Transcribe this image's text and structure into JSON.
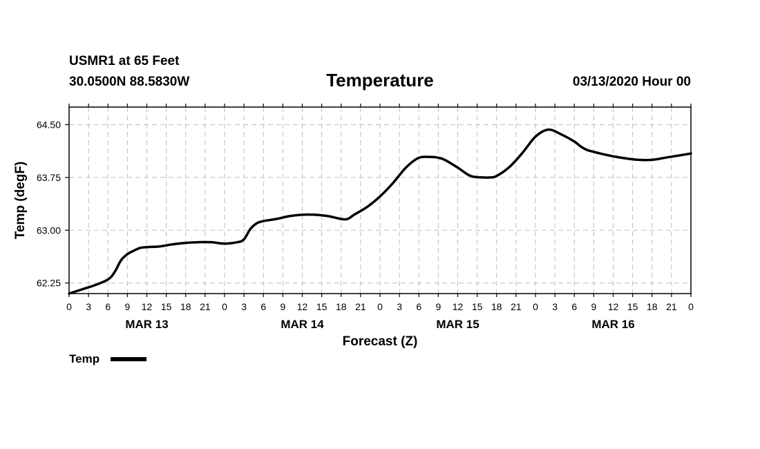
{
  "header": {
    "station": "USMR1 at 65 Feet",
    "coords": "30.0500N 88.5830W",
    "title": "Temperature",
    "run": "03/13/2020 Hour 00"
  },
  "legend": {
    "label": "Temp"
  },
  "chart_data": {
    "type": "line",
    "title": "Temperature",
    "xlabel": "Forecast (Z)",
    "ylabel": "Temp (degF)",
    "xlim": [
      0,
      96
    ],
    "ylim": [
      62.1,
      64.75
    ],
    "grid": true,
    "legend_position": "bottom-left",
    "y_ticks": [
      62.25,
      63.0,
      63.75,
      64.5
    ],
    "y_tick_labels": [
      "62.25",
      "63.00",
      "63.75",
      "64.50"
    ],
    "x_tick_labels": [
      "0",
      "3",
      "6",
      "9",
      "12",
      "15",
      "18",
      "21",
      "0",
      "3",
      "6",
      "9",
      "12",
      "15",
      "18",
      "21",
      "0",
      "3",
      "6",
      "9",
      "12",
      "15",
      "18",
      "21",
      "0",
      "3",
      "6",
      "9",
      "12",
      "15",
      "18",
      "21",
      "0"
    ],
    "day_labels": [
      "MAR 13",
      "MAR 14",
      "MAR 15",
      "MAR 16"
    ],
    "series": [
      {
        "name": "Temp",
        "color": "#000000",
        "x": [
          0,
          2,
          4,
          6,
          7,
          8,
          9,
          10,
          11,
          12,
          14,
          16,
          18,
          20,
          22,
          24,
          26,
          27,
          28,
          29,
          30,
          32,
          34,
          36,
          38,
          40,
          42,
          43,
          44,
          46,
          48,
          50,
          52,
          54,
          56,
          57,
          58,
          60,
          62,
          64,
          65,
          66,
          68,
          70,
          72,
          74,
          76,
          78,
          79,
          80,
          82,
          84,
          86,
          88,
          90,
          92,
          94,
          96
        ],
        "values": [
          62.1,
          62.16,
          62.22,
          62.3,
          62.4,
          62.57,
          62.66,
          62.71,
          62.75,
          62.76,
          62.77,
          62.8,
          62.82,
          62.83,
          62.83,
          62.81,
          62.83,
          62.87,
          63.02,
          63.1,
          63.13,
          63.16,
          63.2,
          63.22,
          63.22,
          63.2,
          63.16,
          63.16,
          63.22,
          63.33,
          63.48,
          63.67,
          63.89,
          64.03,
          64.04,
          64.03,
          64.0,
          63.89,
          63.77,
          63.75,
          63.75,
          63.77,
          63.9,
          64.1,
          64.33,
          64.43,
          64.36,
          64.26,
          64.19,
          64.14,
          64.09,
          64.05,
          64.02,
          64.0,
          64.0,
          64.03,
          64.06,
          64.09
        ]
      }
    ]
  }
}
